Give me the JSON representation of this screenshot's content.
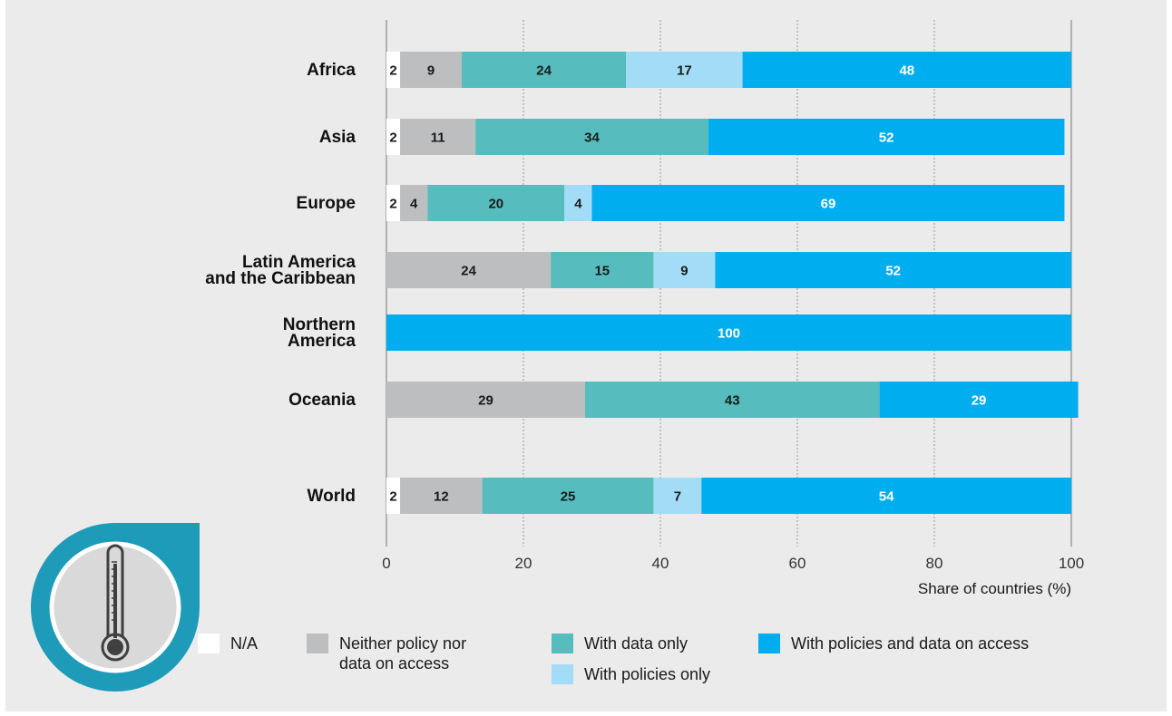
{
  "chart_data": {
    "type": "bar",
    "orientation": "horizontal",
    "stacked": true,
    "xlabel": "Share of countries (%)",
    "xlim": [
      0,
      100
    ],
    "xticks": [
      0,
      20,
      40,
      60,
      80,
      100
    ],
    "grid": "vertical dotted",
    "categories": [
      "Africa",
      "Asia",
      "Europe",
      "Latin America and the Caribbean",
      "Northern America",
      "Oceania",
      "World"
    ],
    "category_label_lines": [
      [
        "Africa"
      ],
      [
        "Asia"
      ],
      [
        "Europe"
      ],
      [
        "Latin America",
        "and the Caribbean"
      ],
      [
        "Northern",
        "America"
      ],
      [
        "Oceania"
      ],
      [
        "World"
      ]
    ],
    "series": [
      {
        "name": "N/A",
        "color": "#ffffff",
        "label_color": "#1a1a1a",
        "values": [
          2,
          2,
          2,
          0,
          0,
          0,
          2
        ]
      },
      {
        "name": "Neither policy nor data on access",
        "legend_lines": [
          "Neither policy nor",
          "data on access"
        ],
        "color": "#bcbec0",
        "label_color": "#1a1a1a",
        "values": [
          9,
          11,
          4,
          24,
          0,
          29,
          12
        ]
      },
      {
        "name": "With data only",
        "color": "#56bcbd",
        "label_color": "#1a1a1a",
        "values": [
          24,
          34,
          20,
          15,
          0,
          43,
          25
        ]
      },
      {
        "name": "With policies only",
        "color": "#a3dcf6",
        "label_color": "#1a1a1a",
        "values": [
          17,
          0,
          4,
          9,
          0,
          0,
          7
        ]
      },
      {
        "name": "With policies and data on access",
        "color": "#00aeef",
        "label_color": "#ffffff",
        "values": [
          48,
          52,
          69,
          52,
          100,
          29,
          54
        ]
      }
    ],
    "legend": {
      "placement": "bottom"
    },
    "background": "#ebebeb"
  },
  "icon": {
    "name": "thermometer-icon",
    "ring_color": "#1d9bb8"
  }
}
